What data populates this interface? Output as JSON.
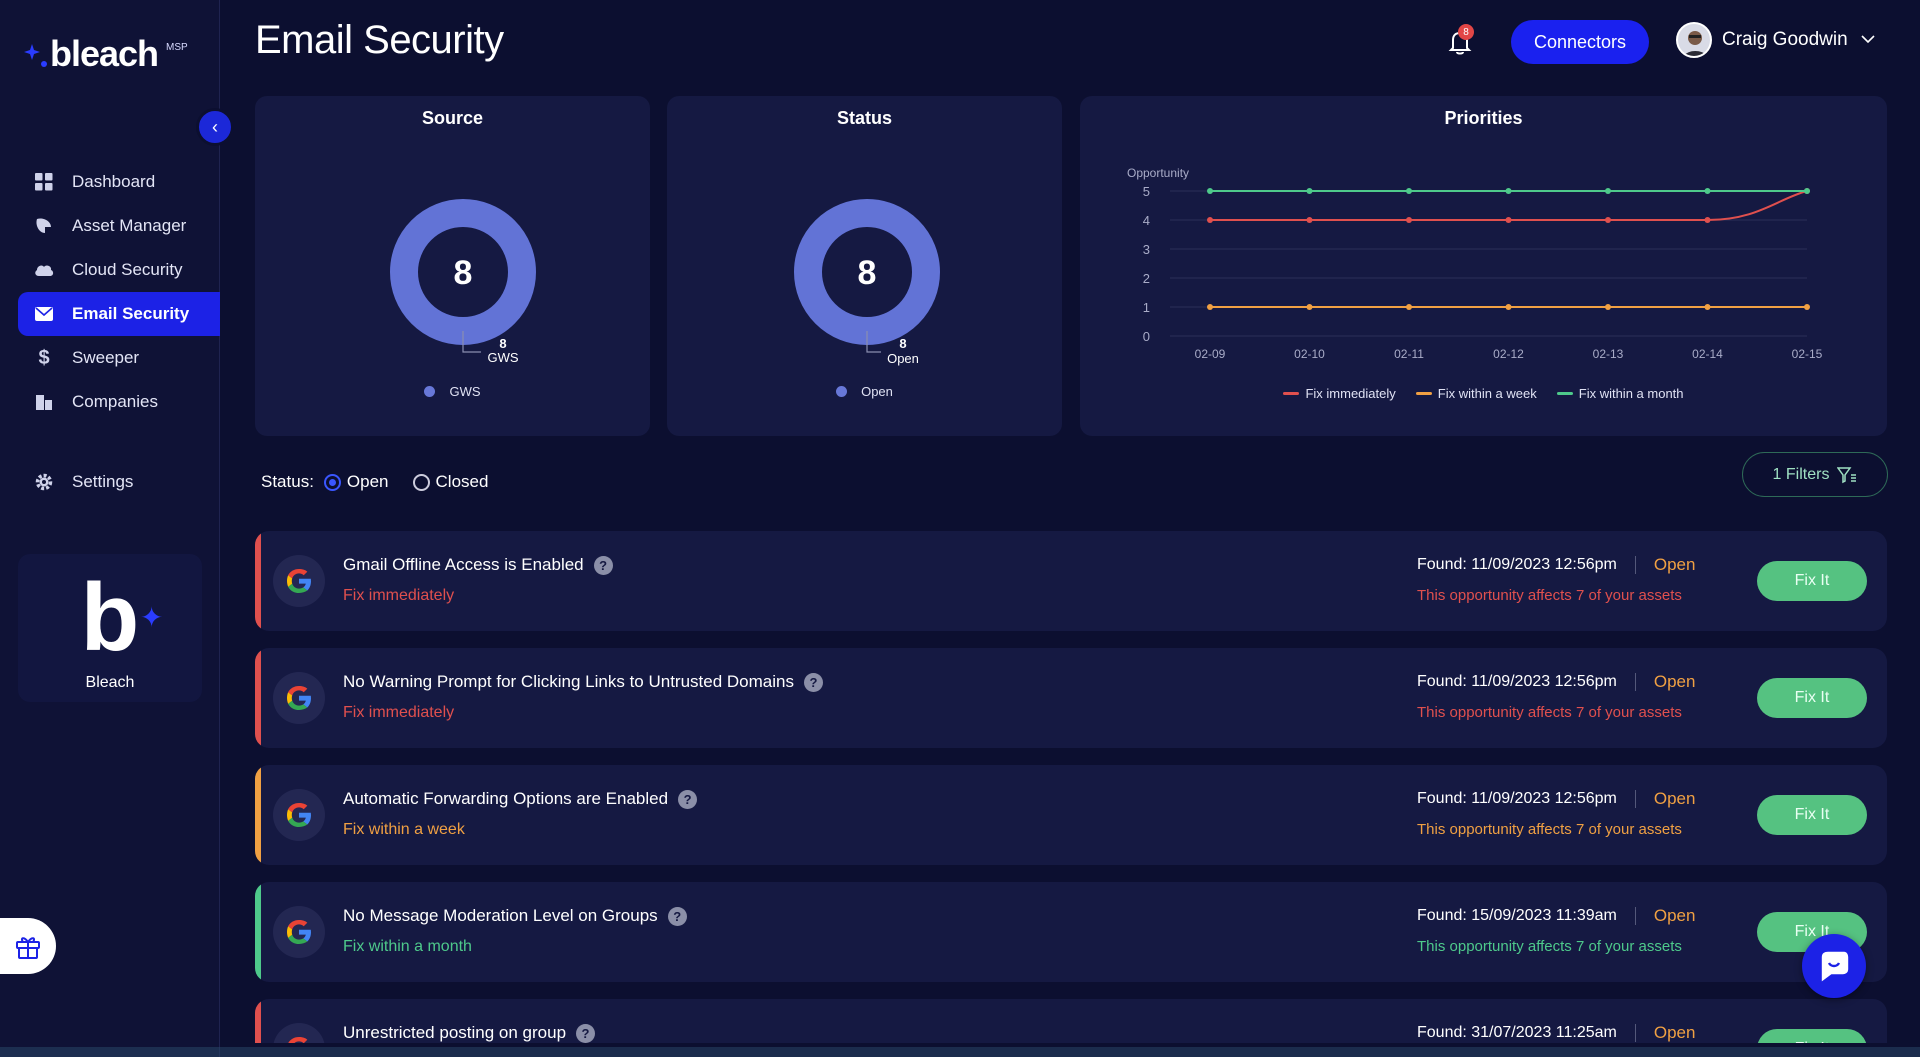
{
  "app": {
    "name": "bleach",
    "badge": "MSP"
  },
  "page": {
    "title": "Email Security"
  },
  "header": {
    "notification_count": "8",
    "connectors_label": "Connectors",
    "user_name": "Craig Goodwin"
  },
  "sidebar": {
    "items": [
      {
        "label": "Dashboard",
        "icon": "grid-icon"
      },
      {
        "label": "Asset Manager",
        "icon": "asset-icon"
      },
      {
        "label": "Cloud Security",
        "icon": "cloud-icon"
      },
      {
        "label": "Email Security",
        "icon": "mail-icon",
        "active": true
      },
      {
        "label": "Sweeper",
        "icon": "dollar-icon"
      },
      {
        "label": "Companies",
        "icon": "building-icon"
      }
    ],
    "settings_label": "Settings",
    "brand_card_label": "Bleach"
  },
  "source_card": {
    "title": "Source",
    "total": "8",
    "callout_value": "8",
    "callout_label": "GWS",
    "legend": "GWS"
  },
  "status_card": {
    "title": "Status",
    "total": "8",
    "callout_value": "8",
    "callout_label": "Open",
    "legend": "Open"
  },
  "priorities_card": {
    "title": "Priorities",
    "chart_data": {
      "type": "line",
      "ylabel": "Opportunity",
      "x": [
        "02-09",
        "02-10",
        "02-11",
        "02-12",
        "02-13",
        "02-14",
        "02-15"
      ],
      "ylim": [
        0,
        5
      ],
      "yticks": [
        "0",
        "1",
        "2",
        "3",
        "4",
        "5"
      ],
      "series": [
        {
          "name": "Fix immediately",
          "color": "#e0504e",
          "values": [
            4,
            4,
            4,
            4,
            4,
            4,
            5
          ]
        },
        {
          "name": "Fix within a week",
          "color": "#f0a043",
          "values": [
            1,
            1,
            1,
            1,
            1,
            1,
            1
          ]
        },
        {
          "name": "Fix within a month",
          "color": "#4ec98b",
          "values": [
            5,
            5,
            5,
            5,
            5,
            5,
            5
          ]
        }
      ],
      "legend_position": "bottom"
    }
  },
  "filters": {
    "status_label": "Status:",
    "open_label": "Open",
    "closed_label": "Closed",
    "filters_button": "1 Filters"
  },
  "findings": [
    {
      "title": "Gmail Offline Access is Enabled",
      "priority": "Fix immediately",
      "color": "#e0504e",
      "found": "Found: 11/09/2023 12:56pm",
      "status": "Open",
      "affects": "This opportunity affects 7 of your assets",
      "action": "Fix It"
    },
    {
      "title": "No Warning Prompt for Clicking Links to Untrusted Domains",
      "priority": "Fix immediately",
      "color": "#e0504e",
      "found": "Found: 11/09/2023 12:56pm",
      "status": "Open",
      "affects": "This opportunity affects 7 of your assets",
      "action": "Fix It"
    },
    {
      "title": "Automatic Forwarding Options are Enabled",
      "priority": "Fix within a week",
      "color": "#f0a043",
      "found": "Found: 11/09/2023 12:56pm",
      "status": "Open",
      "affects": "This opportunity affects 7 of your assets",
      "action": "Fix It"
    },
    {
      "title": "No Message Moderation Level on Groups",
      "priority": "Fix within a month",
      "color": "#4ec98b",
      "found": "Found: 15/09/2023 11:39am",
      "status": "Open",
      "affects": "This opportunity affects 7 of your assets",
      "action": "Fix It"
    },
    {
      "title": "Unrestricted posting on group",
      "priority": "",
      "color": "#e0504e",
      "found": "Found: 31/07/2023 11:25am",
      "status": "Open",
      "affects": "",
      "action": "Fix It"
    }
  ]
}
